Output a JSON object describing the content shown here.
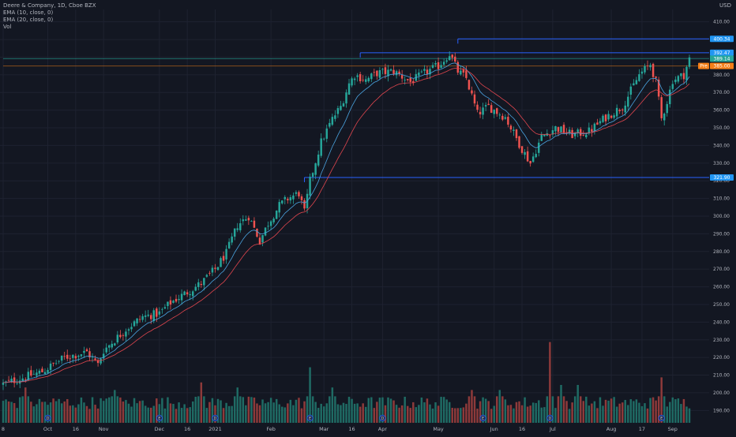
{
  "legend": {
    "symbol_line": "Deere & Company, 1D, Cboe BZX",
    "ema10": "EMA (10, close, 0)",
    "ema20": "EMA (20, close, 0)",
    "vol": "Vol"
  },
  "currency": "USD",
  "colors": {
    "background": "#131722",
    "up": "#26a69a",
    "down": "#ef5350",
    "vol_up": "#1f6b64",
    "vol_down": "#8e3a3a",
    "ema10": "#4aa3df",
    "ema20": "#e0464e",
    "level_line": "#2962ff",
    "level_label": "#2196f3",
    "last_price_label": "#26a69a",
    "pre_label": "#f57f17",
    "grid": "#1e2230"
  },
  "chart_data": {
    "type": "candlestick",
    "title": "Deere & Company, 1D, Cboe BZX",
    "price_range": [
      183,
      417
    ],
    "y_ticks": [
      190,
      200,
      210,
      220,
      230,
      240,
      250,
      260,
      270,
      280,
      290,
      300,
      310,
      320,
      330,
      340,
      350,
      360,
      370,
      380,
      390,
      400,
      410
    ],
    "x_labels": [
      {
        "label": "8",
        "day": 0
      },
      {
        "label": "Oct",
        "day": 16
      },
      {
        "label": "16",
        "day": 26
      },
      {
        "label": "Nov",
        "day": 36
      },
      {
        "label": "Dec",
        "day": 56
      },
      {
        "label": "16",
        "day": 66
      },
      {
        "label": "2021",
        "day": 76
      },
      {
        "label": "Feb",
        "day": 96
      },
      {
        "label": "Mar",
        "day": 115
      },
      {
        "label": "16",
        "day": 125
      },
      {
        "label": "Apr",
        "day": 136
      },
      {
        "label": "May",
        "day": 156
      },
      {
        "label": "Jun",
        "day": 176
      },
      {
        "label": "16",
        "day": 186
      },
      {
        "label": "Jul",
        "day": 197
      },
      {
        "label": "Aug",
        "day": 218
      },
      {
        "label": "17",
        "day": 229
      },
      {
        "label": "Sep",
        "day": 240
      }
    ],
    "total_days": 246,
    "price_path": [
      [
        0,
        205
      ],
      [
        14,
        212
      ],
      [
        22,
        220
      ],
      [
        30,
        223
      ],
      [
        34,
        216
      ],
      [
        36,
        224
      ],
      [
        44,
        236
      ],
      [
        50,
        243
      ],
      [
        56,
        245
      ],
      [
        60,
        251
      ],
      [
        66,
        257
      ],
      [
        71,
        262
      ],
      [
        76,
        270
      ],
      [
        80,
        279
      ],
      [
        84,
        295
      ],
      [
        88,
        300
      ],
      [
        92,
        286
      ],
      [
        95,
        296
      ],
      [
        99,
        306
      ],
      [
        102,
        310
      ],
      [
        106,
        313
      ],
      [
        108,
        302
      ],
      [
        110,
        320
      ],
      [
        114,
        342
      ],
      [
        118,
        355
      ],
      [
        121,
        362
      ],
      [
        124,
        375
      ],
      [
        126,
        380
      ],
      [
        130,
        377
      ],
      [
        134,
        381
      ],
      [
        140,
        382
      ],
      [
        146,
        376
      ],
      [
        152,
        382
      ],
      [
        156,
        385
      ],
      [
        160,
        392
      ],
      [
        163,
        382
      ],
      [
        166,
        378
      ],
      [
        170,
        358
      ],
      [
        174,
        362
      ],
      [
        180,
        356
      ],
      [
        186,
        338
      ],
      [
        189,
        330
      ],
      [
        193,
        345
      ],
      [
        198,
        350
      ],
      [
        204,
        346
      ],
      [
        210,
        348
      ],
      [
        216,
        356
      ],
      [
        222,
        362
      ],
      [
        228,
        380
      ],
      [
        232,
        386
      ],
      [
        234,
        376
      ],
      [
        236,
        355
      ],
      [
        238,
        365
      ],
      [
        240,
        377
      ],
      [
        244,
        380
      ],
      [
        246,
        389
      ]
    ],
    "levels": [
      {
        "price": 400.34,
        "label": "400.34",
        "from_day": 163
      },
      {
        "price": 392.47,
        "label": "392.47",
        "from_day": 128
      },
      {
        "price": 389.14,
        "label": "389.14",
        "from_day": 0,
        "kind": "last"
      },
      {
        "price": 385.0,
        "label": "385.00",
        "from_day": 0,
        "kind": "pre"
      },
      {
        "price": 321.9,
        "label": "321.90",
        "from_day": 108
      }
    ],
    "pre_tag": "Pre",
    "volume_spikes": [
      {
        "day": 8,
        "v": 1.4
      },
      {
        "day": 40,
        "v": 1.3
      },
      {
        "day": 71,
        "v": 1.6
      },
      {
        "day": 84,
        "v": 1.4
      },
      {
        "day": 110,
        "v": 2.2
      },
      {
        "day": 118,
        "v": 1.4
      },
      {
        "day": 168,
        "v": 1.3
      },
      {
        "day": 178,
        "v": 1.3
      },
      {
        "day": 196,
        "v": 3.2
      },
      {
        "day": 200,
        "v": 1.5
      },
      {
        "day": 206,
        "v": 1.5
      },
      {
        "day": 236,
        "v": 1.8
      }
    ],
    "event_markers": [
      {
        "day": 16,
        "label": "D"
      },
      {
        "day": 56,
        "label": "E"
      },
      {
        "day": 76,
        "label": "D"
      },
      {
        "day": 110,
        "label": "E"
      },
      {
        "day": 136,
        "label": "D"
      },
      {
        "day": 172,
        "label": "E"
      },
      {
        "day": 196,
        "label": "D"
      },
      {
        "day": 236,
        "label": "E"
      }
    ]
  }
}
